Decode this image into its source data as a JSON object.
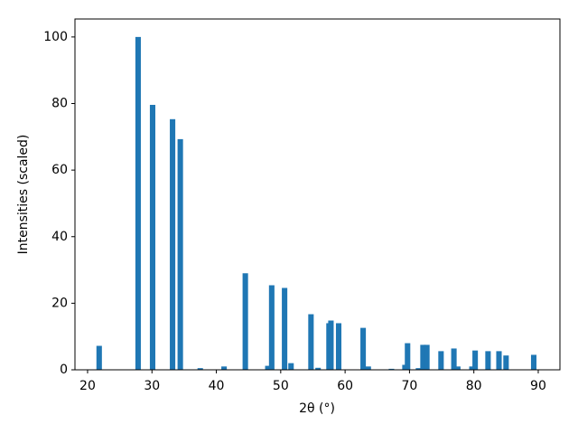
{
  "chart_data": {
    "type": "bar",
    "x_label": "2θ (°)",
    "y_label": "Intensities (scaled)",
    "color": "#1f77b4",
    "x": [
      21.8,
      27.85,
      30.1,
      33.2,
      34.4,
      37.5,
      41.2,
      44.5,
      48.0,
      48.6,
      50.6,
      51.6,
      54.7,
      55.8,
      57.5,
      57.8,
      59.0,
      62.8,
      63.6,
      67.2,
      69.3,
      69.7,
      71.4,
      72.1,
      72.7,
      74.9,
      76.9,
      77.5,
      79.7,
      80.2,
      82.2,
      83.9,
      85.0,
      89.3
    ],
    "values": [
      7.2,
      100,
      79.6,
      75.3,
      69.3,
      0.5,
      1.0,
      29.0,
      1.2,
      25.4,
      24.6,
      2.0,
      16.7,
      0.6,
      14.0,
      14.8,
      14.0,
      12.6,
      1.0,
      0.3,
      1.5,
      8.0,
      0.5,
      7.5,
      7.5,
      5.6,
      6.4,
      1.0,
      1.0,
      5.8,
      5.6,
      5.6,
      4.3,
      4.5
    ],
    "xlim": [
      18.04,
      93.37
    ],
    "ylim": [
      0,
      105.4
    ],
    "xticks": [
      20,
      30,
      40,
      50,
      60,
      70,
      80,
      90
    ],
    "yticks": [
      0,
      20,
      40,
      60,
      80,
      100
    ]
  }
}
